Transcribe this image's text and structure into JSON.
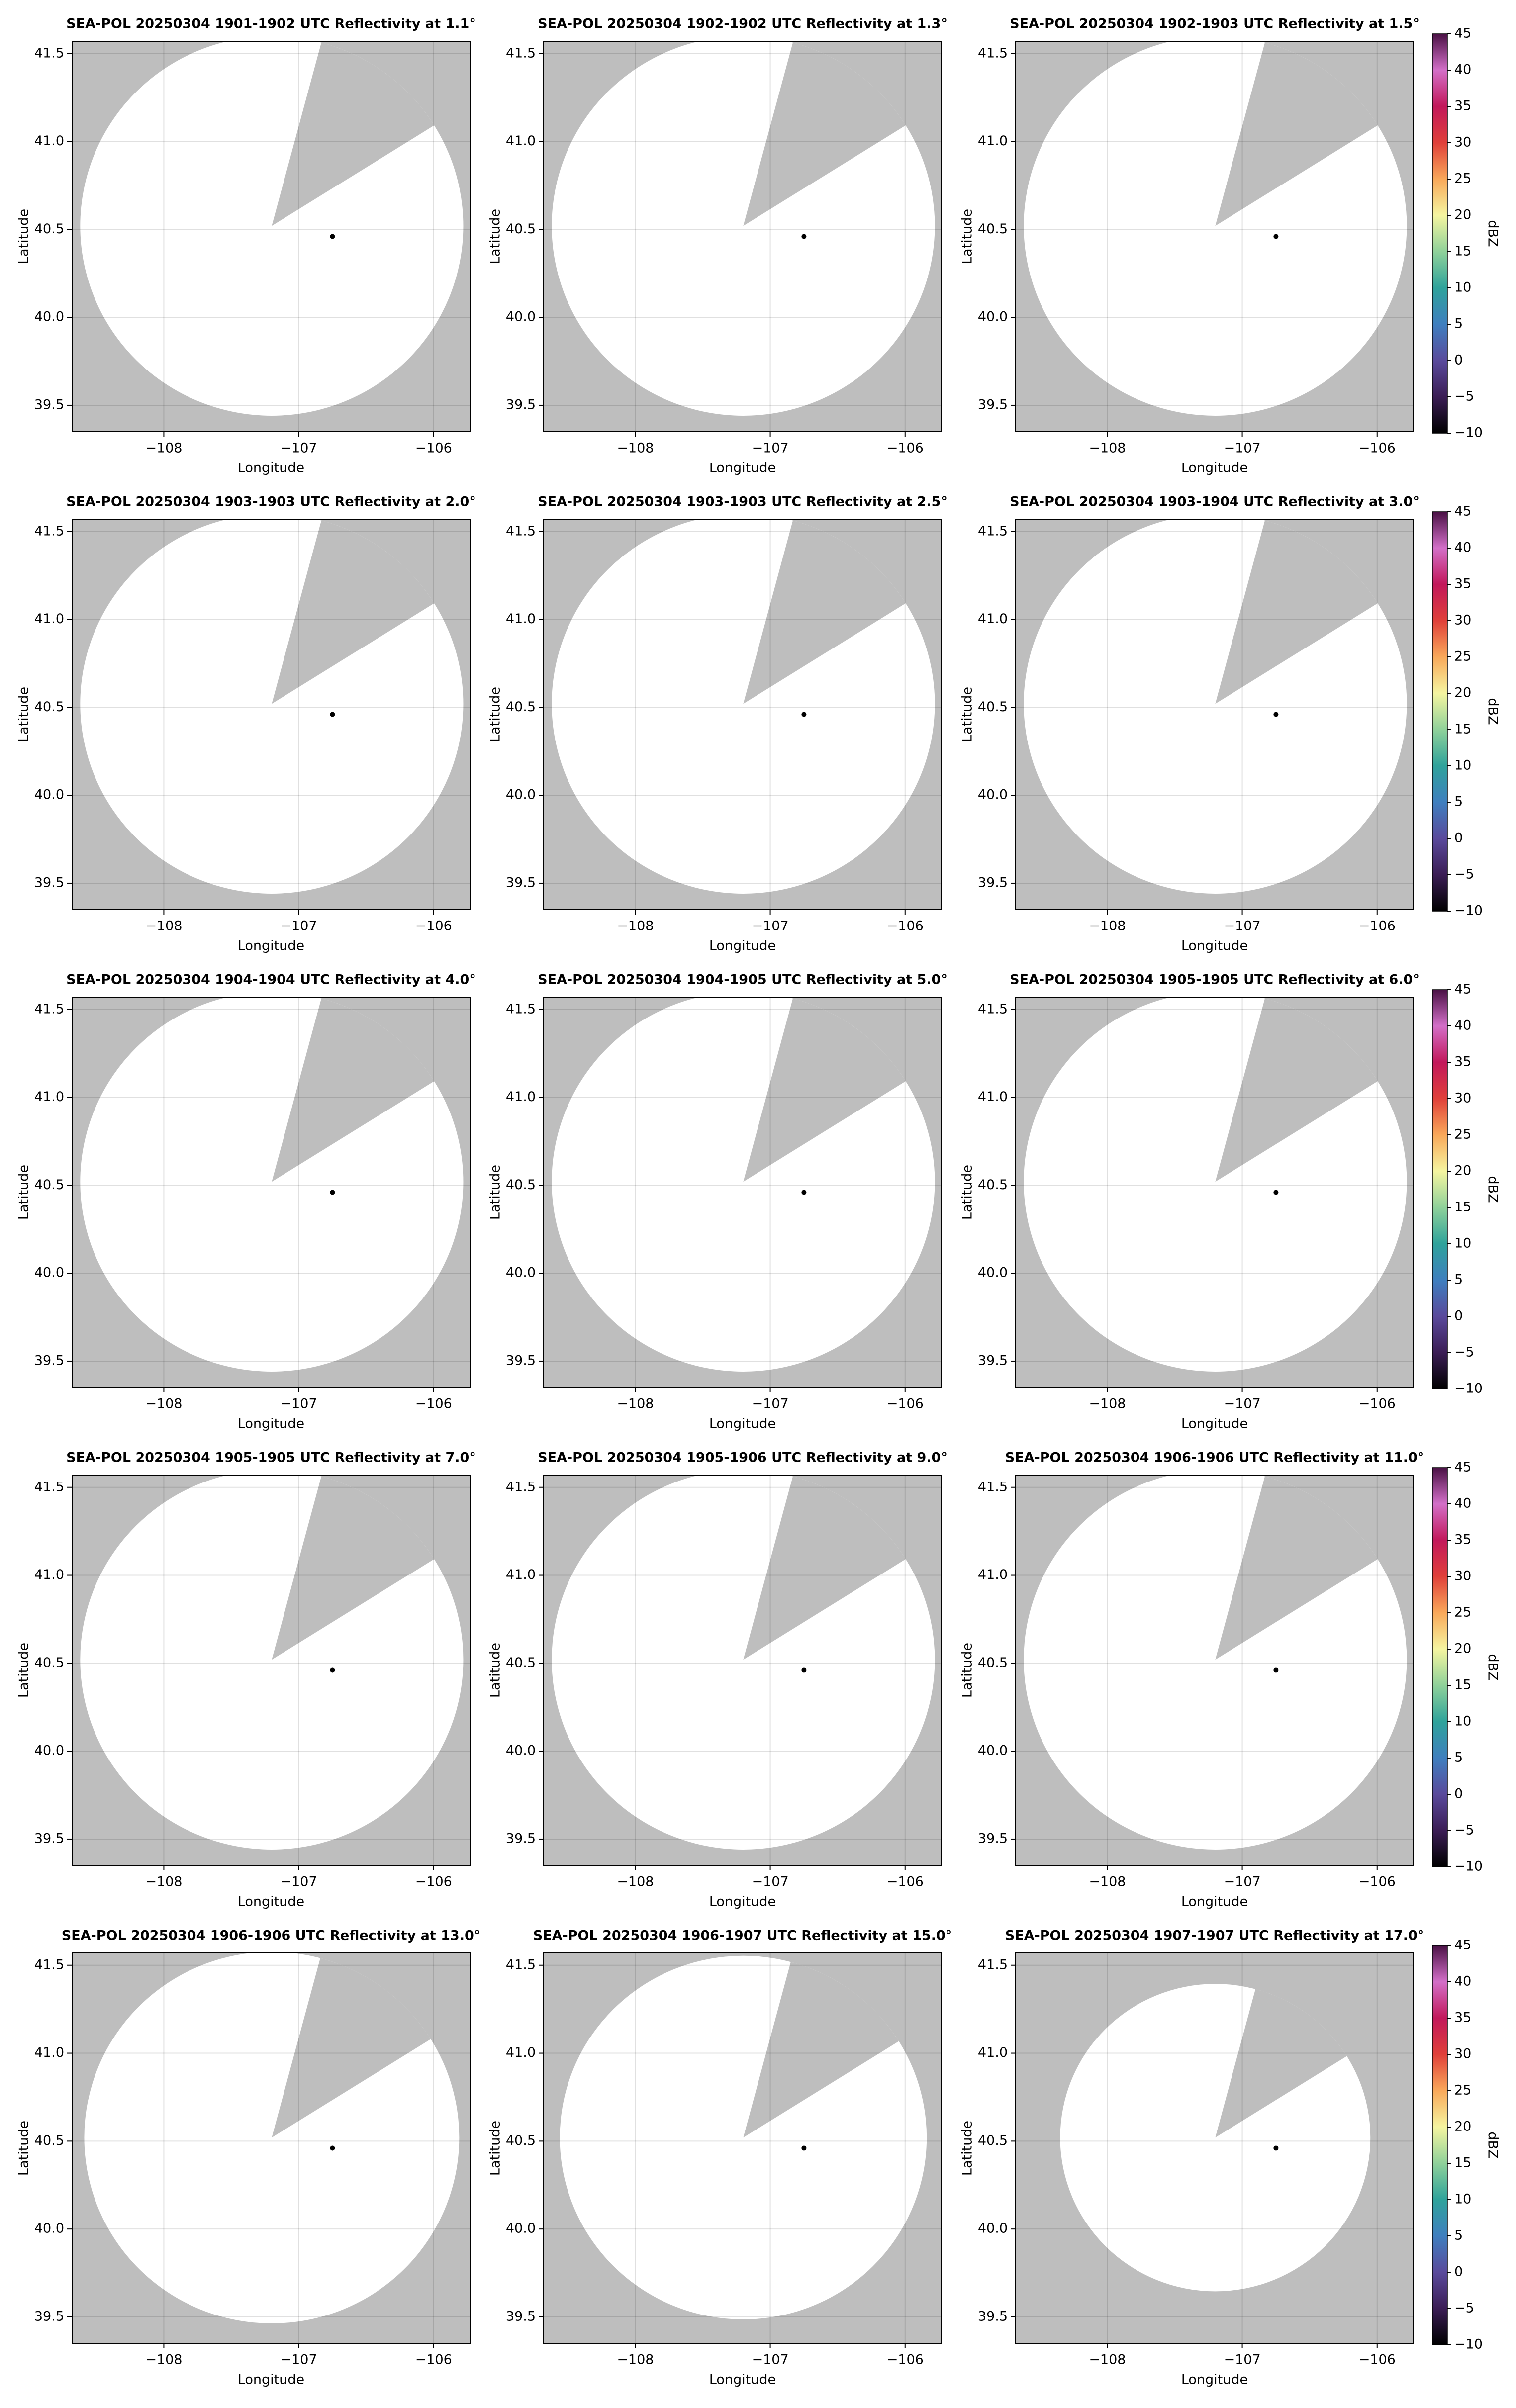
{
  "chart_data": [
    {
      "type": "ppi",
      "title": "SEA-POL 20250304 1901-1902 UTC Reflectivity at 1.1°",
      "xlabel": "Longitude",
      "ylabel": "Latitude",
      "xlim": [
        -108.68,
        -105.73
      ],
      "ylim": [
        39.35,
        41.57
      ],
      "xticks": [
        {
          "value": -108,
          "label": "−108"
        },
        {
          "value": -107,
          "label": "−107"
        },
        {
          "value": -106,
          "label": "−106"
        }
      ],
      "yticks": [
        39.5,
        {
          "value": 40,
          "label": "40.0"
        },
        40.5,
        {
          "value": 41,
          "label": "41.0"
        },
        41.5
      ],
      "grid": true,
      "coverage": {
        "center": [
          -107.2,
          40.52
        ],
        "radius": 1.42,
        "blocked_sector": [
          15,
          58
        ]
      },
      "radar_site": {
        "x": -106.75,
        "y": 40.46
      }
    },
    {
      "type": "ppi",
      "title": "SEA-POL 20250304 1902-1902 UTC Reflectivity at 1.3°",
      "xlabel": "Longitude",
      "ylabel": "Latitude",
      "xlim": [
        -108.68,
        -105.73
      ],
      "ylim": [
        39.35,
        41.57
      ],
      "xticks": [
        {
          "value": -108,
          "label": "−108"
        },
        {
          "value": -107,
          "label": "−107"
        },
        {
          "value": -106,
          "label": "−106"
        }
      ],
      "yticks": [
        39.5,
        {
          "value": 40,
          "label": "40.0"
        },
        40.5,
        {
          "value": 41,
          "label": "41.0"
        },
        41.5
      ],
      "grid": true,
      "coverage": {
        "center": [
          -107.2,
          40.52
        ],
        "radius": 1.42,
        "blocked_sector": [
          15,
          58
        ]
      },
      "radar_site": {
        "x": -106.75,
        "y": 40.46
      }
    },
    {
      "type": "ppi",
      "title": "SEA-POL 20250304 1902-1903 UTC Reflectivity at 1.5°",
      "xlabel": "Longitude",
      "ylabel": "Latitude",
      "xlim": [
        -108.68,
        -105.73
      ],
      "ylim": [
        39.35,
        41.57
      ],
      "xticks": [
        {
          "value": -108,
          "label": "−108"
        },
        {
          "value": -107,
          "label": "−107"
        },
        {
          "value": -106,
          "label": "−106"
        }
      ],
      "yticks": [
        39.5,
        {
          "value": 40,
          "label": "40.0"
        },
        40.5,
        {
          "value": 41,
          "label": "41.0"
        },
        41.5
      ],
      "grid": true,
      "coverage": {
        "center": [
          -107.2,
          40.52
        ],
        "radius": 1.42,
        "blocked_sector": [
          15,
          58
        ]
      },
      "radar_site": {
        "x": -106.75,
        "y": 40.46
      },
      "colorbar": {
        "label": "dBZ",
        "lim": [
          -10,
          45
        ],
        "ticks": [
          {
            "value": -10,
            "label": "−10"
          },
          {
            "value": -5,
            "label": "−5"
          },
          0,
          5,
          10,
          15,
          20,
          25,
          30,
          35,
          40,
          45
        ],
        "colors": [
          "#000000",
          "#3b1d55",
          "#5a4a9c",
          "#3f7fbf",
          "#2fa39b",
          "#8fd19a",
          "#f5f5a0",
          "#f9a85a",
          "#e0403a",
          "#c2185b",
          "#d36fc8",
          "#4a1145"
        ]
      }
    },
    {
      "type": "ppi",
      "title": "SEA-POL 20250304 1903-1903 UTC Reflectivity at 2.0°",
      "xlabel": "Longitude",
      "ylabel": "Latitude",
      "xlim": [
        -108.68,
        -105.73
      ],
      "ylim": [
        39.35,
        41.57
      ],
      "xticks": [
        {
          "value": -108,
          "label": "−108"
        },
        {
          "value": -107,
          "label": "−107"
        },
        {
          "value": -106,
          "label": "−106"
        }
      ],
      "yticks": [
        39.5,
        {
          "value": 40,
          "label": "40.0"
        },
        40.5,
        {
          "value": 41,
          "label": "41.0"
        },
        41.5
      ],
      "grid": true,
      "coverage": {
        "center": [
          -107.2,
          40.52
        ],
        "radius": 1.42,
        "blocked_sector": [
          15,
          58
        ]
      },
      "radar_site": {
        "x": -106.75,
        "y": 40.46
      }
    },
    {
      "type": "ppi",
      "title": "SEA-POL 20250304 1903-1903 UTC Reflectivity at 2.5°",
      "xlabel": "Longitude",
      "ylabel": "Latitude",
      "xlim": [
        -108.68,
        -105.73
      ],
      "ylim": [
        39.35,
        41.57
      ],
      "xticks": [
        {
          "value": -108,
          "label": "−108"
        },
        {
          "value": -107,
          "label": "−107"
        },
        {
          "value": -106,
          "label": "−106"
        }
      ],
      "yticks": [
        39.5,
        {
          "value": 40,
          "label": "40.0"
        },
        40.5,
        {
          "value": 41,
          "label": "41.0"
        },
        41.5
      ],
      "grid": true,
      "coverage": {
        "center": [
          -107.2,
          40.52
        ],
        "radius": 1.42,
        "blocked_sector": [
          15,
          58
        ]
      },
      "radar_site": {
        "x": -106.75,
        "y": 40.46
      }
    },
    {
      "type": "ppi",
      "title": "SEA-POL 20250304 1903-1904 UTC Reflectivity at 3.0°",
      "xlabel": "Longitude",
      "ylabel": "Latitude",
      "xlim": [
        -108.68,
        -105.73
      ],
      "ylim": [
        39.35,
        41.57
      ],
      "xticks": [
        {
          "value": -108,
          "label": "−108"
        },
        {
          "value": -107,
          "label": "−107"
        },
        {
          "value": -106,
          "label": "−106"
        }
      ],
      "yticks": [
        39.5,
        {
          "value": 40,
          "label": "40.0"
        },
        40.5,
        {
          "value": 41,
          "label": "41.0"
        },
        41.5
      ],
      "grid": true,
      "coverage": {
        "center": [
          -107.2,
          40.52
        ],
        "radius": 1.42,
        "blocked_sector": [
          15,
          58
        ]
      },
      "radar_site": {
        "x": -106.75,
        "y": 40.46
      },
      "colorbar": {
        "label": "dBZ",
        "lim": [
          -10,
          45
        ],
        "ticks": [
          {
            "value": -10,
            "label": "−10"
          },
          {
            "value": -5,
            "label": "−5"
          },
          0,
          5,
          10,
          15,
          20,
          25,
          30,
          35,
          40,
          45
        ],
        "colors": [
          "#000000",
          "#3b1d55",
          "#5a4a9c",
          "#3f7fbf",
          "#2fa39b",
          "#8fd19a",
          "#f5f5a0",
          "#f9a85a",
          "#e0403a",
          "#c2185b",
          "#d36fc8",
          "#4a1145"
        ]
      }
    },
    {
      "type": "ppi",
      "title": "SEA-POL 20250304 1904-1904 UTC Reflectivity at 4.0°",
      "xlabel": "Longitude",
      "ylabel": "Latitude",
      "xlim": [
        -108.68,
        -105.73
      ],
      "ylim": [
        39.35,
        41.57
      ],
      "xticks": [
        {
          "value": -108,
          "label": "−108"
        },
        {
          "value": -107,
          "label": "−107"
        },
        {
          "value": -106,
          "label": "−106"
        }
      ],
      "yticks": [
        39.5,
        {
          "value": 40,
          "label": "40.0"
        },
        40.5,
        {
          "value": 41,
          "label": "41.0"
        },
        41.5
      ],
      "grid": true,
      "coverage": {
        "center": [
          -107.2,
          40.52
        ],
        "radius": 1.42,
        "blocked_sector": [
          15,
          58
        ]
      },
      "radar_site": {
        "x": -106.75,
        "y": 40.46
      }
    },
    {
      "type": "ppi",
      "title": "SEA-POL 20250304 1904-1905 UTC Reflectivity at 5.0°",
      "xlabel": "Longitude",
      "ylabel": "Latitude",
      "xlim": [
        -108.68,
        -105.73
      ],
      "ylim": [
        39.35,
        41.57
      ],
      "xticks": [
        {
          "value": -108,
          "label": "−108"
        },
        {
          "value": -107,
          "label": "−107"
        },
        {
          "value": -106,
          "label": "−106"
        }
      ],
      "yticks": [
        39.5,
        {
          "value": 40,
          "label": "40.0"
        },
        40.5,
        {
          "value": 41,
          "label": "41.0"
        },
        41.5
      ],
      "grid": true,
      "coverage": {
        "center": [
          -107.2,
          40.52
        ],
        "radius": 1.42,
        "blocked_sector": [
          15,
          58
        ]
      },
      "radar_site": {
        "x": -106.75,
        "y": 40.46
      }
    },
    {
      "type": "ppi",
      "title": "SEA-POL 20250304 1905-1905 UTC Reflectivity at 6.0°",
      "xlabel": "Longitude",
      "ylabel": "Latitude",
      "xlim": [
        -108.68,
        -105.73
      ],
      "ylim": [
        39.35,
        41.57
      ],
      "xticks": [
        {
          "value": -108,
          "label": "−108"
        },
        {
          "value": -107,
          "label": "−107"
        },
        {
          "value": -106,
          "label": "−106"
        }
      ],
      "yticks": [
        39.5,
        {
          "value": 40,
          "label": "40.0"
        },
        40.5,
        {
          "value": 41,
          "label": "41.0"
        },
        41.5
      ],
      "grid": true,
      "coverage": {
        "center": [
          -107.2,
          40.52
        ],
        "radius": 1.42,
        "blocked_sector": [
          15,
          58
        ]
      },
      "radar_site": {
        "x": -106.75,
        "y": 40.46
      },
      "colorbar": {
        "label": "dBZ",
        "lim": [
          -10,
          45
        ],
        "ticks": [
          {
            "value": -10,
            "label": "−10"
          },
          {
            "value": -5,
            "label": "−5"
          },
          0,
          5,
          10,
          15,
          20,
          25,
          30,
          35,
          40,
          45
        ],
        "colors": [
          "#000000",
          "#3b1d55",
          "#5a4a9c",
          "#3f7fbf",
          "#2fa39b",
          "#8fd19a",
          "#f5f5a0",
          "#f9a85a",
          "#e0403a",
          "#c2185b",
          "#d36fc8",
          "#4a1145"
        ]
      }
    },
    {
      "type": "ppi",
      "title": "SEA-POL 20250304 1905-1905 UTC Reflectivity at 7.0°",
      "xlabel": "Longitude",
      "ylabel": "Latitude",
      "xlim": [
        -108.68,
        -105.73
      ],
      "ylim": [
        39.35,
        41.57
      ],
      "xticks": [
        {
          "value": -108,
          "label": "−108"
        },
        {
          "value": -107,
          "label": "−107"
        },
        {
          "value": -106,
          "label": "−106"
        }
      ],
      "yticks": [
        39.5,
        {
          "value": 40,
          "label": "40.0"
        },
        40.5,
        {
          "value": 41,
          "label": "41.0"
        },
        41.5
      ],
      "grid": true,
      "coverage": {
        "center": [
          -107.2,
          40.52
        ],
        "radius": 1.42,
        "blocked_sector": [
          15,
          58
        ]
      },
      "radar_site": {
        "x": -106.75,
        "y": 40.46
      }
    },
    {
      "type": "ppi",
      "title": "SEA-POL 20250304 1905-1906 UTC Reflectivity at 9.0°",
      "xlabel": "Longitude",
      "ylabel": "Latitude",
      "xlim": [
        -108.68,
        -105.73
      ],
      "ylim": [
        39.35,
        41.57
      ],
      "xticks": [
        {
          "value": -108,
          "label": "−108"
        },
        {
          "value": -107,
          "label": "−107"
        },
        {
          "value": -106,
          "label": "−106"
        }
      ],
      "yticks": [
        39.5,
        {
          "value": 40,
          "label": "40.0"
        },
        40.5,
        {
          "value": 41,
          "label": "41.0"
        },
        41.5
      ],
      "grid": true,
      "coverage": {
        "center": [
          -107.2,
          40.52
        ],
        "radius": 1.42,
        "blocked_sector": [
          15,
          58
        ]
      },
      "radar_site": {
        "x": -106.75,
        "y": 40.46
      }
    },
    {
      "type": "ppi",
      "title": "SEA-POL 20250304 1906-1906 UTC Reflectivity at 11.0°",
      "xlabel": "Longitude",
      "ylabel": "Latitude",
      "xlim": [
        -108.68,
        -105.73
      ],
      "ylim": [
        39.35,
        41.57
      ],
      "xticks": [
        {
          "value": -108,
          "label": "−108"
        },
        {
          "value": -107,
          "label": "−107"
        },
        {
          "value": -106,
          "label": "−106"
        }
      ],
      "yticks": [
        39.5,
        {
          "value": 40,
          "label": "40.0"
        },
        40.5,
        {
          "value": 41,
          "label": "41.0"
        },
        41.5
      ],
      "grid": true,
      "coverage": {
        "center": [
          -107.2,
          40.52
        ],
        "radius": 1.42,
        "blocked_sector": [
          15,
          58
        ]
      },
      "radar_site": {
        "x": -106.75,
        "y": 40.46
      },
      "colorbar": {
        "label": "dBZ",
        "lim": [
          -10,
          45
        ],
        "ticks": [
          {
            "value": -10,
            "label": "−10"
          },
          {
            "value": -5,
            "label": "−5"
          },
          0,
          5,
          10,
          15,
          20,
          25,
          30,
          35,
          40,
          45
        ],
        "colors": [
          "#000000",
          "#3b1d55",
          "#5a4a9c",
          "#3f7fbf",
          "#2fa39b",
          "#8fd19a",
          "#f5f5a0",
          "#f9a85a",
          "#e0403a",
          "#c2185b",
          "#d36fc8",
          "#4a1145"
        ]
      }
    },
    {
      "type": "ppi",
      "title": "SEA-POL 20250304 1906-1906 UTC Reflectivity at 13.0°",
      "xlabel": "Longitude",
      "ylabel": "Latitude",
      "xlim": [
        -108.68,
        -105.73
      ],
      "ylim": [
        39.35,
        41.57
      ],
      "xticks": [
        {
          "value": -108,
          "label": "−108"
        },
        {
          "value": -107,
          "label": "−107"
        },
        {
          "value": -106,
          "label": "−106"
        }
      ],
      "yticks": [
        39.5,
        {
          "value": 40,
          "label": "40.0"
        },
        40.5,
        {
          "value": 41,
          "label": "41.0"
        },
        41.5
      ],
      "grid": true,
      "coverage": {
        "center": [
          -107.2,
          40.52
        ],
        "radius": 1.39,
        "blocked_sector": [
          15,
          58
        ]
      },
      "radar_site": {
        "x": -106.75,
        "y": 40.46
      }
    },
    {
      "type": "ppi",
      "title": "SEA-POL 20250304 1906-1907 UTC Reflectivity at 15.0°",
      "xlabel": "Longitude",
      "ylabel": "Latitude",
      "xlim": [
        -108.68,
        -105.73
      ],
      "ylim": [
        39.35,
        41.57
      ],
      "xticks": [
        {
          "value": -108,
          "label": "−108"
        },
        {
          "value": -107,
          "label": "−107"
        },
        {
          "value": -106,
          "label": "−106"
        }
      ],
      "yticks": [
        39.5,
        {
          "value": 40,
          "label": "40.0"
        },
        40.5,
        {
          "value": 41,
          "label": "41.0"
        },
        41.5
      ],
      "grid": true,
      "coverage": {
        "center": [
          -107.2,
          40.52
        ],
        "radius": 1.36,
        "blocked_sector": [
          15,
          58
        ]
      },
      "radar_site": {
        "x": -106.75,
        "y": 40.46
      }
    },
    {
      "type": "ppi",
      "title": "SEA-POL 20250304 1907-1907 UTC Reflectivity at 17.0°",
      "xlabel": "Longitude",
      "ylabel": "Latitude",
      "xlim": [
        -108.68,
        -105.73
      ],
      "ylim": [
        39.35,
        41.57
      ],
      "xticks": [
        {
          "value": -108,
          "label": "−108"
        },
        {
          "value": -107,
          "label": "−107"
        },
        {
          "value": -106,
          "label": "−106"
        }
      ],
      "yticks": [
        39.5,
        {
          "value": 40,
          "label": "40.0"
        },
        40.5,
        {
          "value": 41,
          "label": "41.0"
        },
        41.5
      ],
      "grid": true,
      "coverage": {
        "center": [
          -107.2,
          40.52
        ],
        "radius": 1.15,
        "blocked_sector": [
          15,
          58
        ]
      },
      "radar_site": {
        "x": -106.75,
        "y": 40.46
      },
      "colorbar": {
        "label": "dBZ",
        "lim": [
          -10,
          45
        ],
        "ticks": [
          {
            "value": -10,
            "label": "−10"
          },
          {
            "value": -5,
            "label": "−5"
          },
          0,
          5,
          10,
          15,
          20,
          25,
          30,
          35,
          40,
          45
        ],
        "colors": [
          "#000000",
          "#3b1d55",
          "#5a4a9c",
          "#3f7fbf",
          "#2fa39b",
          "#8fd19a",
          "#f5f5a0",
          "#f9a85a",
          "#e0403a",
          "#c2185b",
          "#d36fc8",
          "#4a1145"
        ]
      }
    }
  ]
}
